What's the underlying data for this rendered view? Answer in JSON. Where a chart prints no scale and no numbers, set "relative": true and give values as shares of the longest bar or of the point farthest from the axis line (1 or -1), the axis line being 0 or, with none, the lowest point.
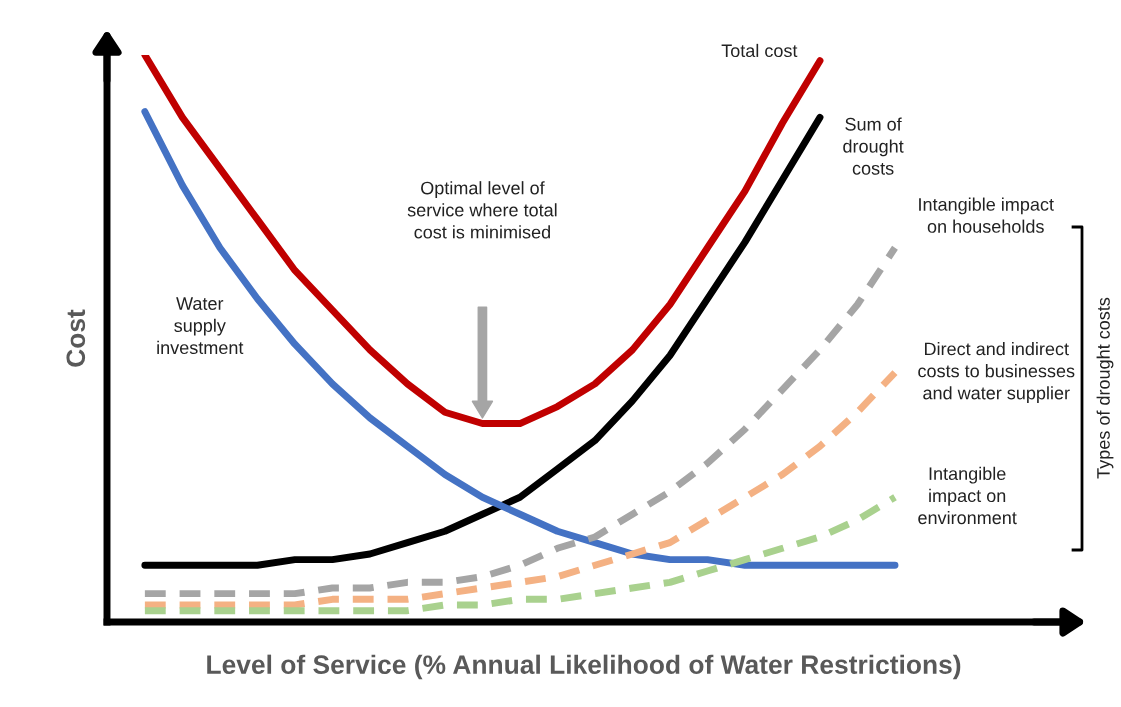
{
  "chart_data": {
    "type": "line",
    "relative": true,
    "xlabel": "Level of Service (% Annual Likelihood of Water Restrictions)",
    "ylabel": "Cost",
    "categories": [
      null,
      null,
      null,
      null,
      null,
      null,
      null,
      null,
      null,
      null,
      null,
      null,
      null,
      null,
      null,
      null,
      null,
      null,
      null,
      null,
      null
    ],
    "series": [
      {
        "name": "Total cost",
        "color": "#c00000",
        "line_style": "solid",
        "values": [
          1.0,
          0.89,
          0.8,
          0.71,
          0.62,
          0.55,
          0.48,
          0.42,
          0.37,
          0.35,
          0.35,
          0.38,
          0.42,
          0.48,
          0.56,
          0.66,
          0.76,
          0.88,
          0.99,
          null,
          null
        ]
      },
      {
        "name": "Sum of\ndrought\ncosts",
        "color": "#000000",
        "line_style": "solid",
        "values": [
          0.1,
          0.1,
          0.1,
          0.1,
          0.11,
          0.11,
          0.12,
          0.14,
          0.16,
          0.19,
          0.22,
          0.27,
          0.32,
          0.39,
          0.47,
          0.57,
          0.67,
          0.78,
          0.89,
          null,
          null
        ]
      },
      {
        "name": "Water\nsupply\ninvestment",
        "color": "#4472c4",
        "line_style": "solid",
        "values": [
          0.9,
          0.77,
          0.66,
          0.57,
          0.49,
          0.42,
          0.36,
          0.31,
          0.26,
          0.22,
          0.19,
          0.16,
          0.14,
          0.12,
          0.11,
          0.11,
          0.1,
          0.1,
          0.1,
          0.1,
          0.1
        ]
      },
      {
        "name": "Intangible impact\non households",
        "color": "#a5a5a5",
        "line_style": "dashed",
        "values": [
          0.05,
          0.05,
          0.05,
          0.05,
          0.05,
          0.06,
          0.06,
          0.07,
          0.07,
          0.08,
          0.1,
          0.13,
          0.15,
          0.19,
          0.23,
          0.28,
          0.34,
          0.41,
          0.48,
          0.56,
          0.66
        ]
      },
      {
        "name": "Direct and indirect\ncosts to businesses\nand water supplier",
        "color": "#f4b183",
        "line_style": "dashed",
        "values": [
          0.03,
          0.03,
          0.03,
          0.03,
          0.03,
          0.04,
          0.04,
          0.04,
          0.05,
          0.06,
          0.07,
          0.08,
          0.1,
          0.12,
          0.14,
          0.18,
          0.22,
          0.26,
          0.31,
          0.37,
          0.44
        ]
      },
      {
        "name": "Intangible\nimpact on\nenvironment",
        "color": "#a9d18e",
        "line_style": "dashed",
        "values": [
          0.02,
          0.02,
          0.02,
          0.02,
          0.02,
          0.02,
          0.02,
          0.02,
          0.03,
          0.03,
          0.04,
          0.04,
          0.05,
          0.06,
          0.07,
          0.09,
          0.11,
          0.13,
          0.15,
          0.18,
          0.22
        ]
      }
    ],
    "annotations": [
      "Optimal level of\nservice where total\ncost is minimised",
      "Types of drought costs"
    ]
  }
}
